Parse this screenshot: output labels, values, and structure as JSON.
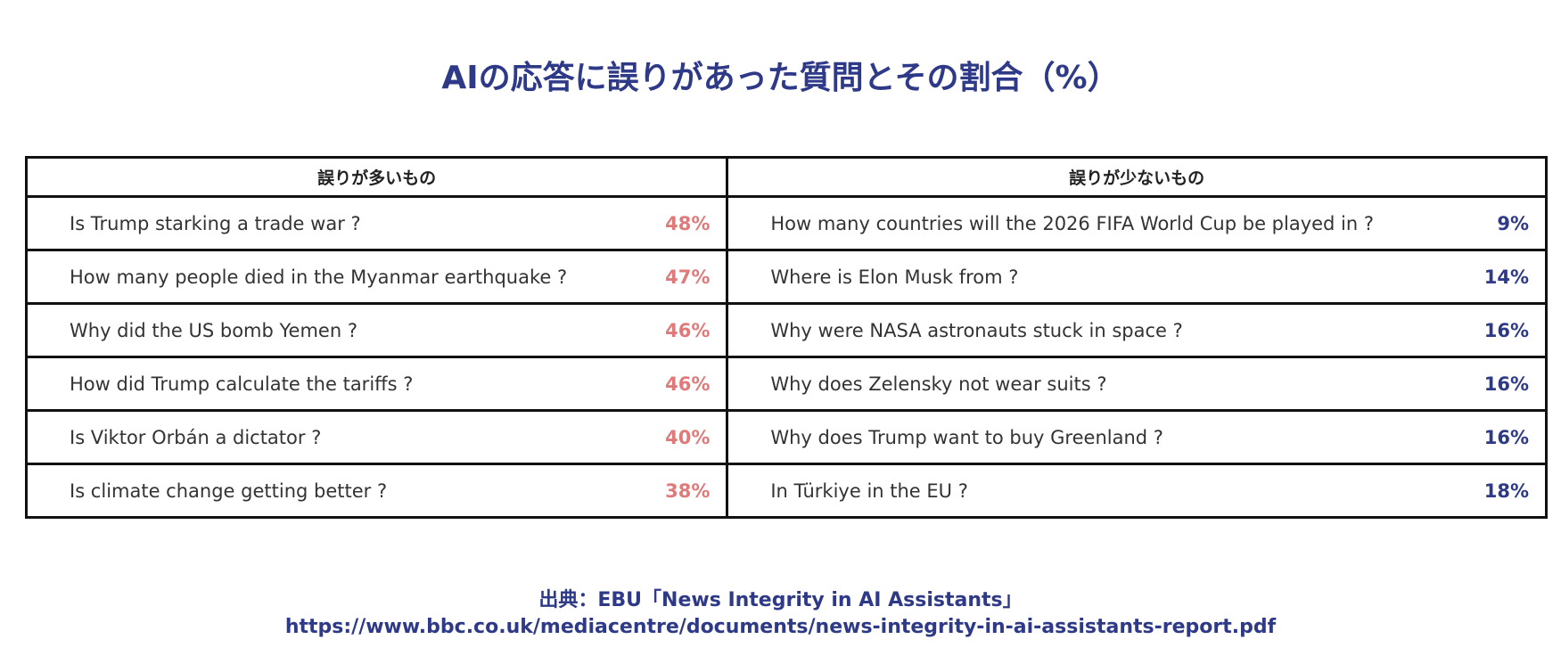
{
  "title": "AIの応答に誤りがあった質問とその割合（%）",
  "columns": [
    "誤りが多いもの",
    "誤りが少ないもの"
  ],
  "left_rows": [
    {
      "q": "Is Trump starking a trade war ?",
      "p": "48%"
    },
    {
      "q": "How many people died in the Myanmar earthquake ?",
      "p": "47%"
    },
    {
      "q": "Why did the US bomb Yemen ?",
      "p": "46%"
    },
    {
      "q": "How did Trump calculate the tariffs ?",
      "p": "46%"
    },
    {
      "q": "Is Viktor Orbán a dictator ?",
      "p": "40%"
    },
    {
      "q": "Is climate change getting better ?",
      "p": "38%"
    }
  ],
  "right_rows": [
    {
      "q": "How many countries will the 2026 FIFA World Cup be played in ?",
      "p": "9%"
    },
    {
      "q": "Where is Elon Musk from ?",
      "p": "14%"
    },
    {
      "q": "Why were NASA astronauts stuck in space ?",
      "p": "16%"
    },
    {
      "q": "Why does Zelensky not wear suits ?",
      "p": "16%"
    },
    {
      "q": "Why does Trump want to buy Greenland ?",
      "p": "16%"
    },
    {
      "q": "In Türkiye in the EU ?",
      "p": "18%"
    }
  ],
  "source": "出典：EBU「News Integrity in AI Assistants」",
  "url": "https://www.bbc.co.uk/mediacentre/documents/news-integrity-in-ai-assistants-report.pdf"
}
